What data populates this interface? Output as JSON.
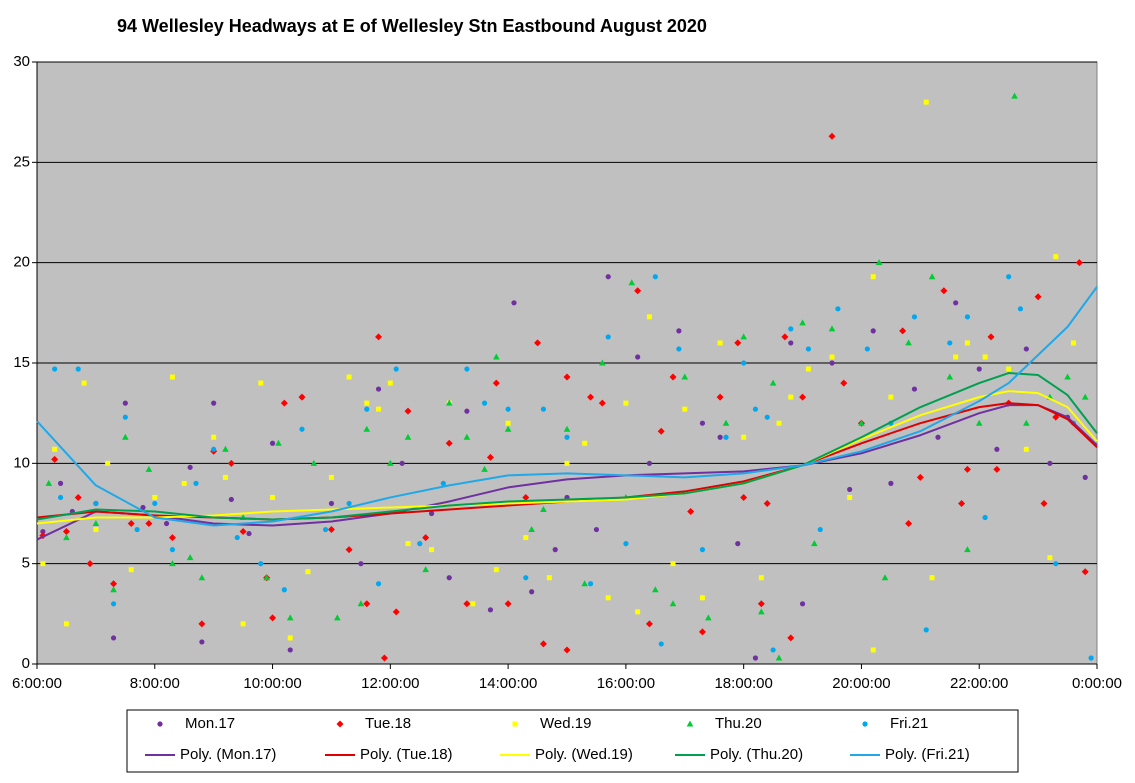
{
  "chart_data": {
    "type": "scatter",
    "title": "94 Wellesley  Headways  at E of Wellesley  Stn  Eastbound  August  2020",
    "xlim": [
      6,
      24
    ],
    "xticks": [
      {
        "value": 6,
        "label": "6:00:00"
      },
      {
        "value": 8,
        "label": "8:00:00"
      },
      {
        "value": 10,
        "label": "10:00:00"
      },
      {
        "value": 12,
        "label": "12:00:00"
      },
      {
        "value": 14,
        "label": "14:00:00"
      },
      {
        "value": 16,
        "label": "16:00:00"
      },
      {
        "value": 18,
        "label": "18:00:00"
      },
      {
        "value": 20,
        "label": "20:00:00"
      },
      {
        "value": 22,
        "label": "22:00:00"
      },
      {
        "value": 24,
        "label": "0:00:00"
      }
    ],
    "ylim": [
      0,
      30
    ],
    "yticks": [
      0,
      5,
      10,
      15,
      20,
      25,
      30
    ],
    "grid": true,
    "series": [
      {
        "name": "Mon.17",
        "color": "#7030a0",
        "marker": "circle",
        "x": [
          6.1,
          6.4,
          6.6,
          7.0,
          7.3,
          7.5,
          7.8,
          8.2,
          8.6,
          8.8,
          9.0,
          9.3,
          9.6,
          10.0,
          10.3,
          10.5,
          11.0,
          11.5,
          11.8,
          12.2,
          12.7,
          13.0,
          13.3,
          13.7,
          14.1,
          14.4,
          14.8,
          15.0,
          15.5,
          15.7,
          16.2,
          16.4,
          16.9,
          17.3,
          17.6,
          17.9,
          18.2,
          18.8,
          19.0,
          19.5,
          19.8,
          20.2,
          20.5,
          20.9,
          21.3,
          21.6,
          22.0,
          22.3,
          22.8,
          23.2,
          23.5,
          23.8
        ],
        "values": [
          6.6,
          9.0,
          7.6,
          8.0,
          1.3,
          13.0,
          7.8,
          7.0,
          9.8,
          1.1,
          13.0,
          8.2,
          6.5,
          11.0,
          0.7,
          13.3,
          8.0,
          5.0,
          13.7,
          10.0,
          7.5,
          4.3,
          12.6,
          2.7,
          18.0,
          3.6,
          5.7,
          8.3,
          6.7,
          19.3,
          15.3,
          10.0,
          16.6,
          12.0,
          11.3,
          6.0,
          0.3,
          16.0,
          3.0,
          15.0,
          8.7,
          16.6,
          9.0,
          13.7,
          11.3,
          18.0,
          14.7,
          10.7,
          15.7,
          10.0,
          12.3,
          9.3
        ]
      },
      {
        "name": "Tue.18",
        "color": "#ff0000",
        "marker": "diamond",
        "x": [
          6.1,
          6.3,
          6.5,
          6.7,
          6.9,
          7.3,
          7.6,
          7.9,
          8.3,
          8.8,
          9.0,
          9.3,
          9.5,
          9.9,
          10.0,
          10.2,
          10.5,
          11.0,
          11.3,
          11.6,
          11.9,
          11.8,
          12.1,
          12.3,
          12.6,
          13.0,
          13.3,
          13.7,
          13.8,
          14.0,
          14.3,
          14.5,
          14.6,
          15.0,
          15.0,
          15.4,
          15.6,
          16.2,
          16.4,
          16.6,
          16.8,
          17.1,
          17.3,
          17.6,
          17.9,
          18.0,
          18.3,
          18.4,
          18.7,
          18.8,
          19.0,
          19.5,
          19.7,
          20.0,
          20.7,
          20.8,
          21.0,
          21.4,
          21.7,
          21.8,
          22.2,
          22.3,
          22.5,
          23.0,
          23.1,
          23.3,
          23.7,
          23.8
        ],
        "values": [
          6.4,
          10.2,
          6.6,
          8.3,
          5.0,
          4.0,
          7.0,
          7.0,
          6.3,
          2.0,
          10.6,
          10.0,
          6.6,
          4.3,
          2.3,
          13.0,
          13.3,
          6.7,
          5.7,
          3.0,
          0.3,
          16.3,
          2.6,
          12.6,
          6.3,
          11.0,
          3.0,
          10.3,
          14.0,
          3.0,
          8.3,
          16.0,
          1.0,
          14.3,
          0.7,
          13.3,
          13.0,
          18.6,
          2.0,
          11.6,
          14.3,
          7.6,
          1.6,
          13.3,
          16.0,
          8.3,
          3.0,
          8.0,
          16.3,
          1.3,
          13.3,
          26.3,
          14.0,
          12.0,
          16.6,
          7.0,
          9.3,
          18.6,
          8.0,
          9.7,
          16.3,
          9.7,
          13.0,
          18.3,
          8.0,
          12.3,
          20.0,
          4.6
        ]
      },
      {
        "name": "Wed.19",
        "color": "#ffff00",
        "marker": "square",
        "x": [
          6.1,
          6.3,
          6.5,
          6.8,
          7.0,
          7.2,
          7.6,
          8.0,
          8.3,
          8.5,
          9.0,
          9.2,
          9.5,
          9.8,
          10.0,
          10.3,
          10.6,
          11.0,
          11.3,
          11.6,
          11.8,
          12.0,
          12.3,
          12.7,
          13.0,
          13.4,
          13.8,
          14.0,
          14.3,
          14.7,
          15.0,
          15.3,
          15.7,
          16.0,
          16.2,
          16.4,
          16.8,
          17.0,
          17.3,
          17.6,
          18.0,
          18.3,
          18.6,
          18.8,
          19.1,
          19.5,
          19.8,
          20.2,
          20.2,
          20.5,
          21.1,
          21.2,
          21.6,
          21.8,
          22.1,
          22.5,
          22.8,
          23.2,
          23.3,
          23.6
        ],
        "values": [
          5.0,
          10.7,
          2.0,
          14.0,
          6.7,
          10.0,
          4.7,
          8.3,
          14.3,
          9.0,
          11.3,
          9.3,
          2.0,
          14.0,
          8.3,
          1.3,
          4.6,
          9.3,
          14.3,
          13.0,
          12.7,
          14.0,
          6.0,
          5.7,
          13.0,
          3.0,
          4.7,
          12.0,
          6.3,
          4.3,
          10.0,
          11.0,
          3.3,
          13.0,
          2.6,
          17.3,
          5.0,
          12.7,
          3.3,
          16.0,
          11.3,
          4.3,
          12.0,
          13.3,
          14.7,
          15.3,
          8.3,
          19.3,
          0.7,
          13.3,
          28.0,
          4.3,
          15.3,
          16.0,
          15.3,
          14.7,
          10.7,
          5.3,
          20.3,
          16.0
        ]
      },
      {
        "name": "Thu.20",
        "color": "#00cc33",
        "marker": "triangle",
        "x": [
          6.2,
          6.5,
          7.0,
          7.3,
          7.5,
          7.9,
          8.3,
          8.6,
          8.8,
          9.2,
          9.5,
          9.9,
          10.1,
          10.3,
          10.7,
          11.1,
          11.5,
          11.6,
          12.0,
          12.3,
          12.6,
          13.0,
          13.3,
          13.6,
          13.8,
          14.0,
          14.4,
          14.6,
          15.0,
          15.3,
          15.6,
          16.0,
          16.1,
          16.5,
          16.8,
          17.0,
          17.4,
          17.7,
          18.0,
          18.3,
          18.5,
          18.6,
          19.0,
          19.2,
          19.5,
          20.0,
          20.3,
          20.4,
          20.8,
          21.2,
          21.5,
          21.8,
          22.0,
          22.6,
          22.8,
          23.2,
          23.5,
          23.8
        ],
        "values": [
          9.0,
          6.3,
          7.0,
          3.7,
          11.3,
          9.7,
          5.0,
          5.3,
          4.3,
          10.7,
          7.3,
          4.3,
          11.0,
          2.3,
          10.0,
          2.3,
          3.0,
          11.7,
          10.0,
          11.3,
          4.7,
          13.0,
          11.3,
          9.7,
          15.3,
          11.7,
          6.7,
          7.7,
          11.7,
          4.0,
          15.0,
          8.3,
          19.0,
          3.7,
          3.0,
          14.3,
          2.3,
          12.0,
          16.3,
          2.6,
          14.0,
          0.3,
          17.0,
          6.0,
          16.7,
          12.0,
          20.0,
          4.3,
          16.0,
          19.3,
          14.3,
          5.7,
          12.0,
          28.3,
          12.0,
          13.3,
          14.3,
          13.3
        ]
      },
      {
        "name": "Fri.21",
        "color": "#00a8f0",
        "marker": "circle",
        "x": [
          6.3,
          6.4,
          6.7,
          7.0,
          7.3,
          7.5,
          7.7,
          8.0,
          8.3,
          8.7,
          9.0,
          9.4,
          9.8,
          10.2,
          10.5,
          10.9,
          11.3,
          11.6,
          11.8,
          12.1,
          12.5,
          12.9,
          13.3,
          13.6,
          14.0,
          14.3,
          14.6,
          15.0,
          15.4,
          15.7,
          16.0,
          16.5,
          16.6,
          16.9,
          17.3,
          17.7,
          18.0,
          18.2,
          18.4,
          18.5,
          18.8,
          19.1,
          19.3,
          19.6,
          20.1,
          20.5,
          20.9,
          21.1,
          21.5,
          21.8,
          22.1,
          22.5,
          22.7,
          23.3,
          23.6,
          23.9
        ],
        "values": [
          14.7,
          8.3,
          14.7,
          8.0,
          3.0,
          12.3,
          6.7,
          8.0,
          5.7,
          9.0,
          10.7,
          6.3,
          5.0,
          3.7,
          11.7,
          6.7,
          8.0,
          12.7,
          4.0,
          14.7,
          6.0,
          9.0,
          14.7,
          13.0,
          12.7,
          4.3,
          12.7,
          11.3,
          4.0,
          16.3,
          6.0,
          19.3,
          1.0,
          15.7,
          5.7,
          11.3,
          15.0,
          12.7,
          12.3,
          0.7,
          16.7,
          15.7,
          6.7,
          17.7,
          15.7,
          12.0,
          17.3,
          1.7,
          16.0,
          17.3,
          7.3,
          19.3,
          17.7,
          5.0,
          12.0,
          0.3
        ]
      }
    ],
    "trend_x": [
      6,
      7,
      8,
      9,
      10,
      11,
      12,
      13,
      14,
      15,
      16,
      17,
      18,
      19,
      20,
      21,
      22,
      22.5,
      23,
      23.5,
      24
    ],
    "trendlines": [
      {
        "name": "Poly. (Mon.17)",
        "color": "#7030a0",
        "values": [
          6.2,
          7.6,
          7.4,
          7.0,
          6.9,
          7.1,
          7.5,
          8.1,
          8.8,
          9.2,
          9.4,
          9.5,
          9.6,
          9.9,
          10.5,
          11.4,
          12.5,
          12.9,
          12.9,
          12.3,
          10.9
        ]
      },
      {
        "name": "Poly. (Tue.18)",
        "color": "#e00000",
        "values": [
          7.3,
          7.6,
          7.4,
          7.3,
          7.2,
          7.3,
          7.5,
          7.7,
          7.9,
          8.1,
          8.3,
          8.6,
          9.1,
          9.9,
          11.0,
          12.0,
          12.8,
          13.0,
          12.9,
          12.2,
          10.8
        ]
      },
      {
        "name": "Poly. (Wed.19)",
        "color": "#ffff00",
        "values": [
          7.0,
          7.3,
          7.3,
          7.4,
          7.6,
          7.7,
          7.8,
          7.9,
          8.0,
          8.1,
          8.2,
          8.5,
          9.0,
          9.9,
          11.2,
          12.4,
          13.3,
          13.6,
          13.5,
          12.8,
          11.1
        ]
      },
      {
        "name": "Poly. (Thu.20)",
        "color": "#00a050",
        "values": [
          7.2,
          7.7,
          7.6,
          7.3,
          7.2,
          7.3,
          7.6,
          7.9,
          8.1,
          8.2,
          8.3,
          8.5,
          9.0,
          9.9,
          11.3,
          12.8,
          14.0,
          14.5,
          14.4,
          13.4,
          11.5
        ]
      },
      {
        "name": "Poly. (Fri.21)",
        "color": "#20a8e8",
        "values": [
          12.1,
          8.9,
          7.3,
          6.9,
          7.1,
          7.6,
          8.3,
          8.9,
          9.4,
          9.5,
          9.4,
          9.3,
          9.5,
          9.9,
          10.6,
          11.6,
          13.1,
          14.0,
          15.4,
          16.8,
          18.8
        ]
      }
    ]
  }
}
